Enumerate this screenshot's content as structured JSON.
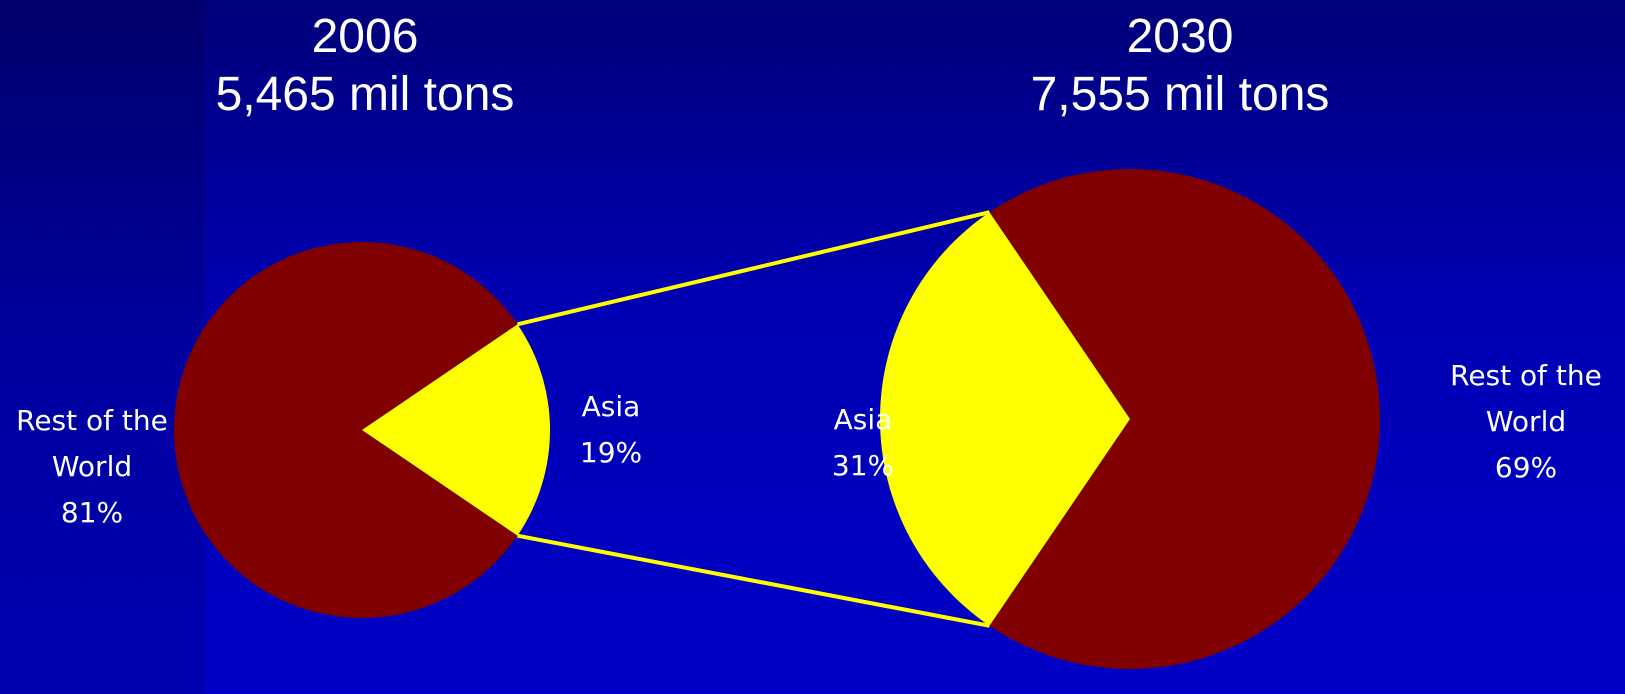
{
  "chart_data": {
    "type": "pie",
    "charts": [
      {
        "title_year": "2006",
        "title_total": "5,465 mil tons",
        "total": 5465,
        "slices": [
          {
            "label_line1": "Rest of the",
            "label_line2": "World",
            "percent_text": "81%",
            "value": 81,
            "color": "#800000"
          },
          {
            "label_line1": "Asia",
            "label_line2": "",
            "percent_text": "19%",
            "value": 19,
            "color": "#ffff00"
          }
        ]
      },
      {
        "title_year": "2030",
        "title_total": "7,555 mil tons",
        "total": 7555,
        "slices": [
          {
            "label_line1": "Rest of the",
            "label_line2": "World",
            "percent_text": "69%",
            "value": 69,
            "color": "#800000"
          },
          {
            "label_line1": "Asia",
            "label_line2": "",
            "percent_text": "31%",
            "value": 31,
            "color": "#ffff00"
          }
        ]
      }
    ],
    "connector_color": "#ffff00"
  }
}
